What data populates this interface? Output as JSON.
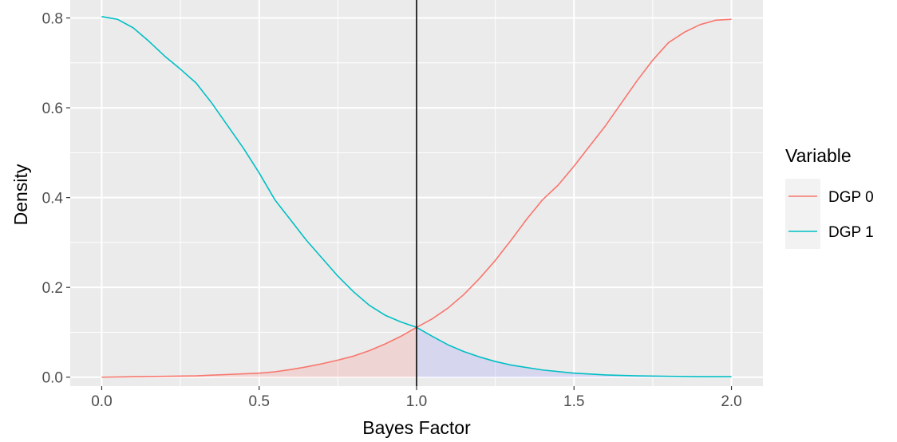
{
  "chart_data": {
    "type": "line",
    "xlabel": "Bayes Factor",
    "ylabel": "Density",
    "xlim": [
      -0.1,
      2.1
    ],
    "ylim": [
      -0.02,
      0.84
    ],
    "x_ticks": [
      0.0,
      0.5,
      1.0,
      1.5,
      2.0
    ],
    "x_tick_labels": [
      "0.0",
      "0.5",
      "1.0",
      "1.5",
      "2.0"
    ],
    "y_ticks": [
      0.0,
      0.2,
      0.4,
      0.6,
      0.8
    ],
    "y_tick_labels": [
      "0.0",
      "0.2",
      "0.4",
      "0.6",
      "0.8"
    ],
    "grid": true,
    "background": "#ebebeb",
    "vline": {
      "x": 1.0,
      "color": "#000000"
    },
    "legend": {
      "title": "Variable",
      "position": "right"
    },
    "series": [
      {
        "name": "DGP 0",
        "color": "#F8766D",
        "fill_below_x": 1.0,
        "fill_color": "#F8766D",
        "x": [
          0.0,
          0.1,
          0.2,
          0.3,
          0.4,
          0.5,
          0.55,
          0.6,
          0.65,
          0.7,
          0.75,
          0.8,
          0.85,
          0.9,
          0.95,
          1.0,
          1.05,
          1.1,
          1.15,
          1.2,
          1.25,
          1.3,
          1.35,
          1.4,
          1.45,
          1.5,
          1.55,
          1.6,
          1.65,
          1.7,
          1.75,
          1.8,
          1.85,
          1.9,
          1.95,
          2.0
        ],
        "y": [
          0.0,
          0.001,
          0.002,
          0.003,
          0.006,
          0.009,
          0.012,
          0.017,
          0.023,
          0.03,
          0.038,
          0.047,
          0.059,
          0.074,
          0.091,
          0.111,
          0.13,
          0.154,
          0.184,
          0.22,
          0.26,
          0.305,
          0.352,
          0.395,
          0.428,
          0.47,
          0.515,
          0.56,
          0.61,
          0.66,
          0.706,
          0.745,
          0.768,
          0.785,
          0.795,
          0.797
        ]
      },
      {
        "name": "DGP 1",
        "color": "#00BFC4",
        "fill_above_x": 1.0,
        "fill_color": "#8C8CFF",
        "x": [
          0.0,
          0.05,
          0.1,
          0.15,
          0.2,
          0.25,
          0.3,
          0.35,
          0.4,
          0.45,
          0.5,
          0.55,
          0.6,
          0.65,
          0.7,
          0.75,
          0.8,
          0.85,
          0.9,
          0.95,
          1.0,
          1.05,
          1.1,
          1.15,
          1.2,
          1.25,
          1.3,
          1.4,
          1.5,
          1.6,
          1.7,
          1.8,
          1.9,
          2.0
        ],
        "y": [
          0.803,
          0.797,
          0.778,
          0.748,
          0.715,
          0.686,
          0.655,
          0.61,
          0.56,
          0.51,
          0.455,
          0.395,
          0.35,
          0.305,
          0.265,
          0.225,
          0.19,
          0.16,
          0.138,
          0.123,
          0.111,
          0.091,
          0.072,
          0.057,
          0.045,
          0.035,
          0.027,
          0.016,
          0.009,
          0.005,
          0.003,
          0.002,
          0.001,
          0.001
        ]
      }
    ]
  }
}
